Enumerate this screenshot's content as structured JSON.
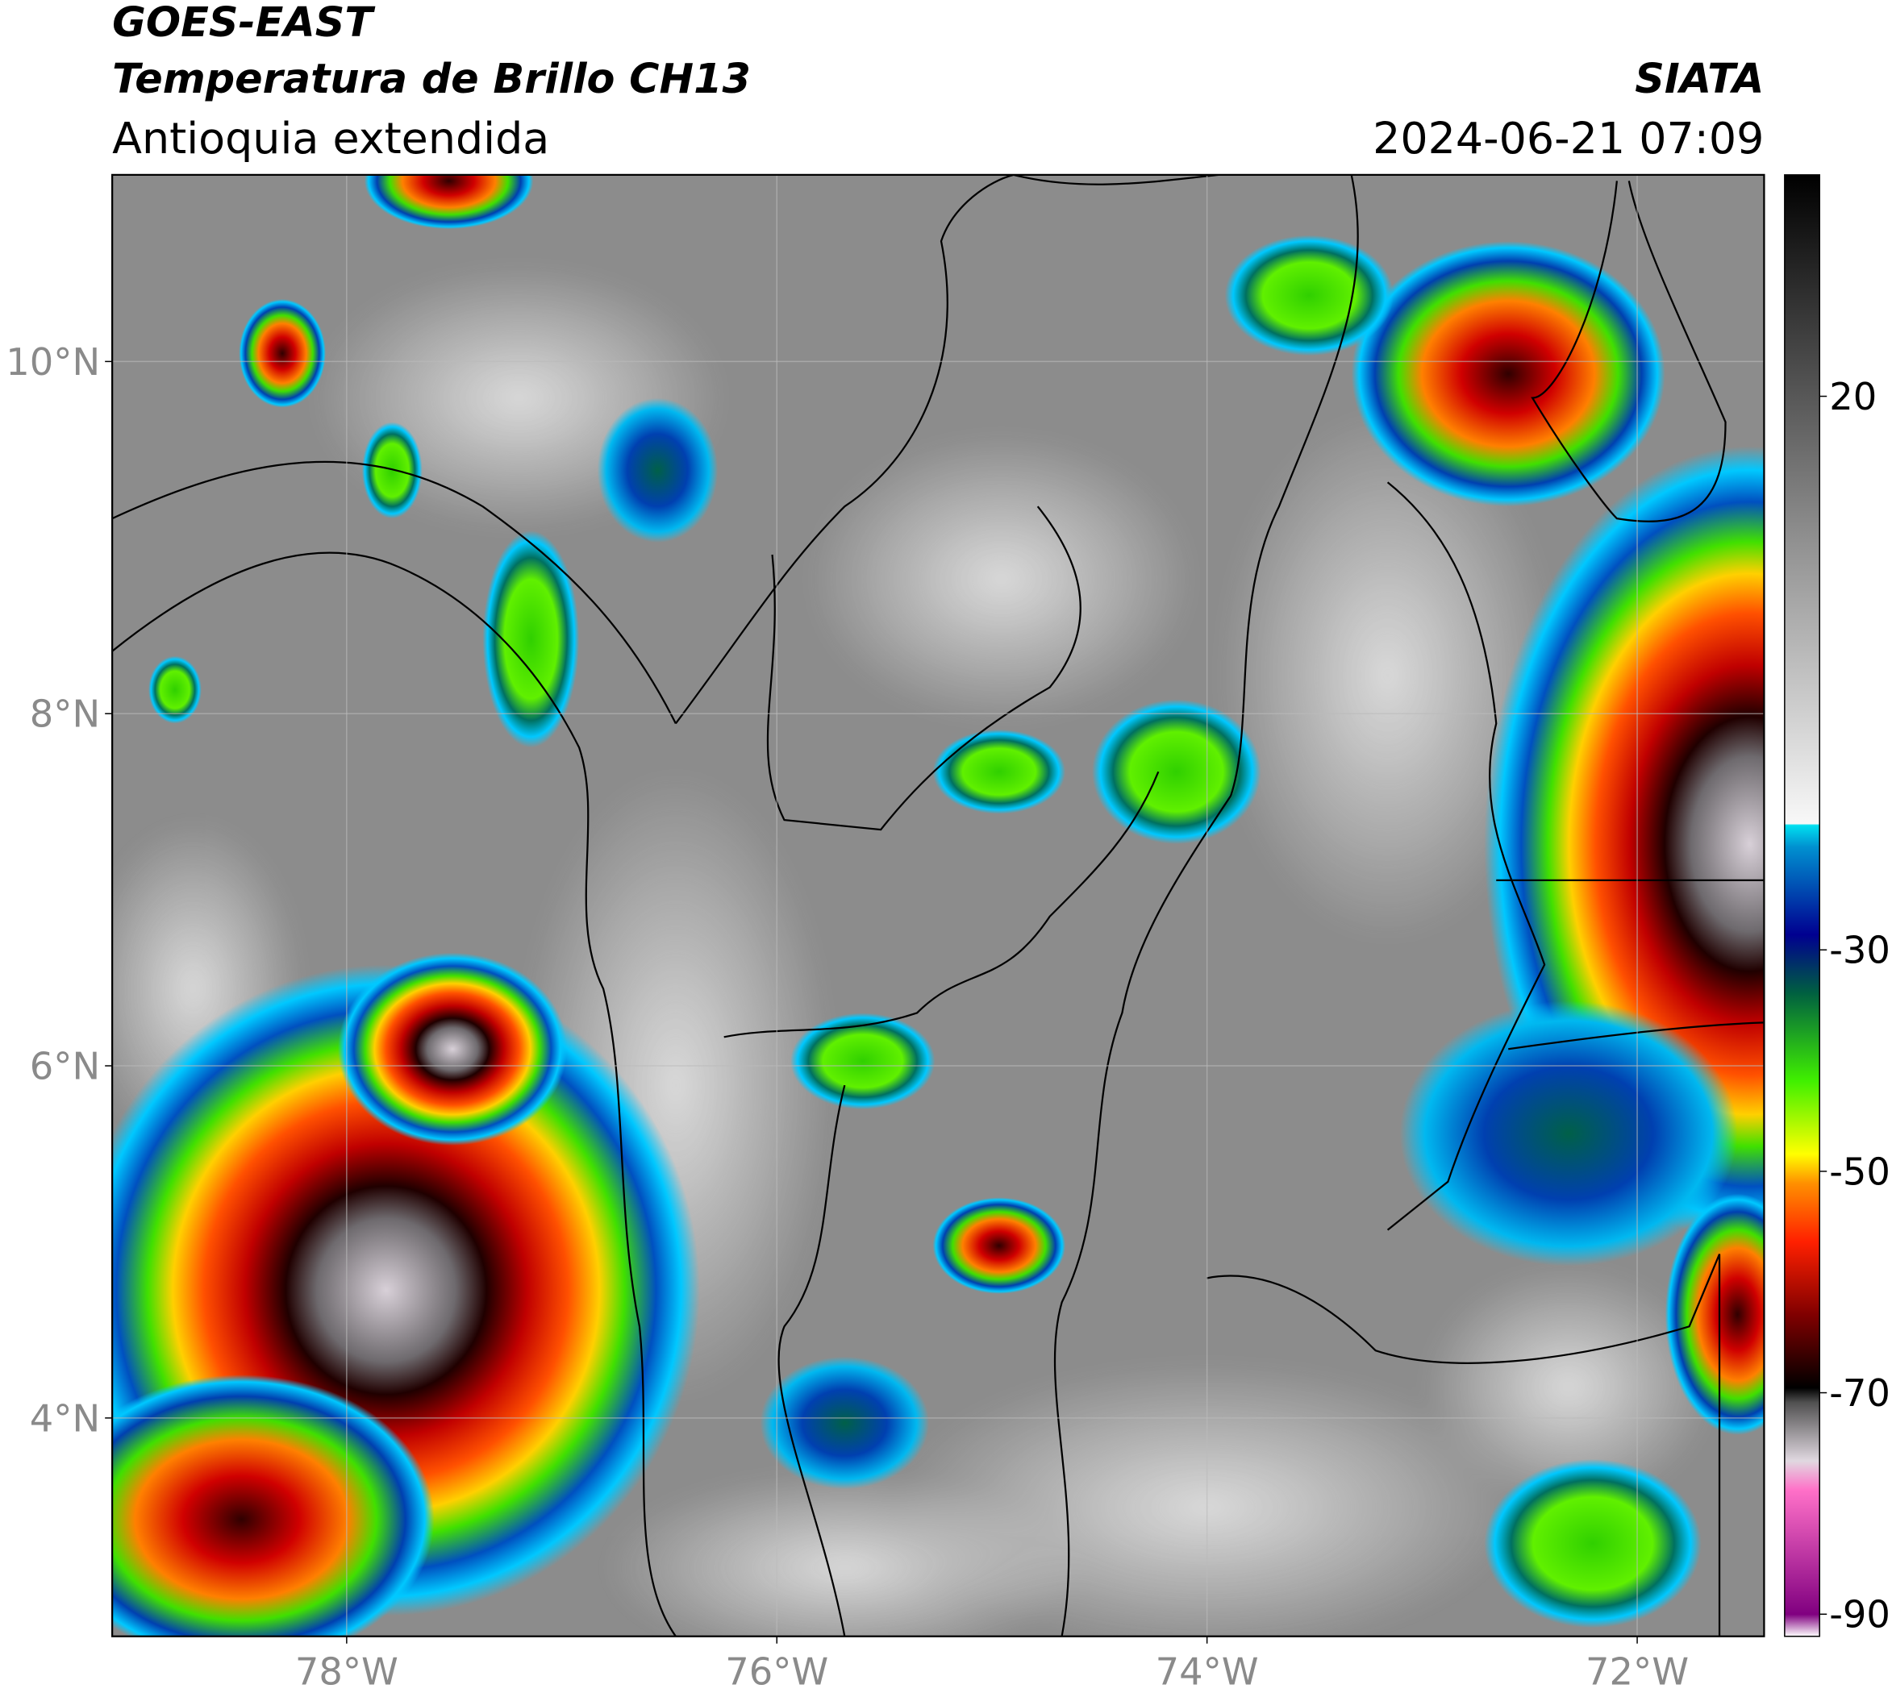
{
  "header": {
    "title": "GOES-EAST",
    "subtitle": "Temperatura de Brillo CH13",
    "region": "Antioquia extendida",
    "brand": "SIATA",
    "datetime": "2024-06-21 07:09"
  },
  "map": {
    "xlim": [
      -79.09,
      -71.41
    ],
    "ylim": [
      2.76,
      11.06
    ],
    "xticks": [
      {
        "value": -78,
        "label": "78°W"
      },
      {
        "value": -76,
        "label": "76°W"
      },
      {
        "value": -74,
        "label": "74°W"
      },
      {
        "value": -72,
        "label": "72°W"
      }
    ],
    "yticks": [
      {
        "value": 4,
        "label": "4°N"
      },
      {
        "value": 6,
        "label": "6°N"
      },
      {
        "value": 8,
        "label": "8°N"
      },
      {
        "value": 10,
        "label": "10°N"
      }
    ],
    "grid": true
  },
  "colorbar": {
    "lim": [
      -92,
      40
    ],
    "ticks": [
      -90,
      -70,
      -50,
      -30,
      20
    ]
  }
}
